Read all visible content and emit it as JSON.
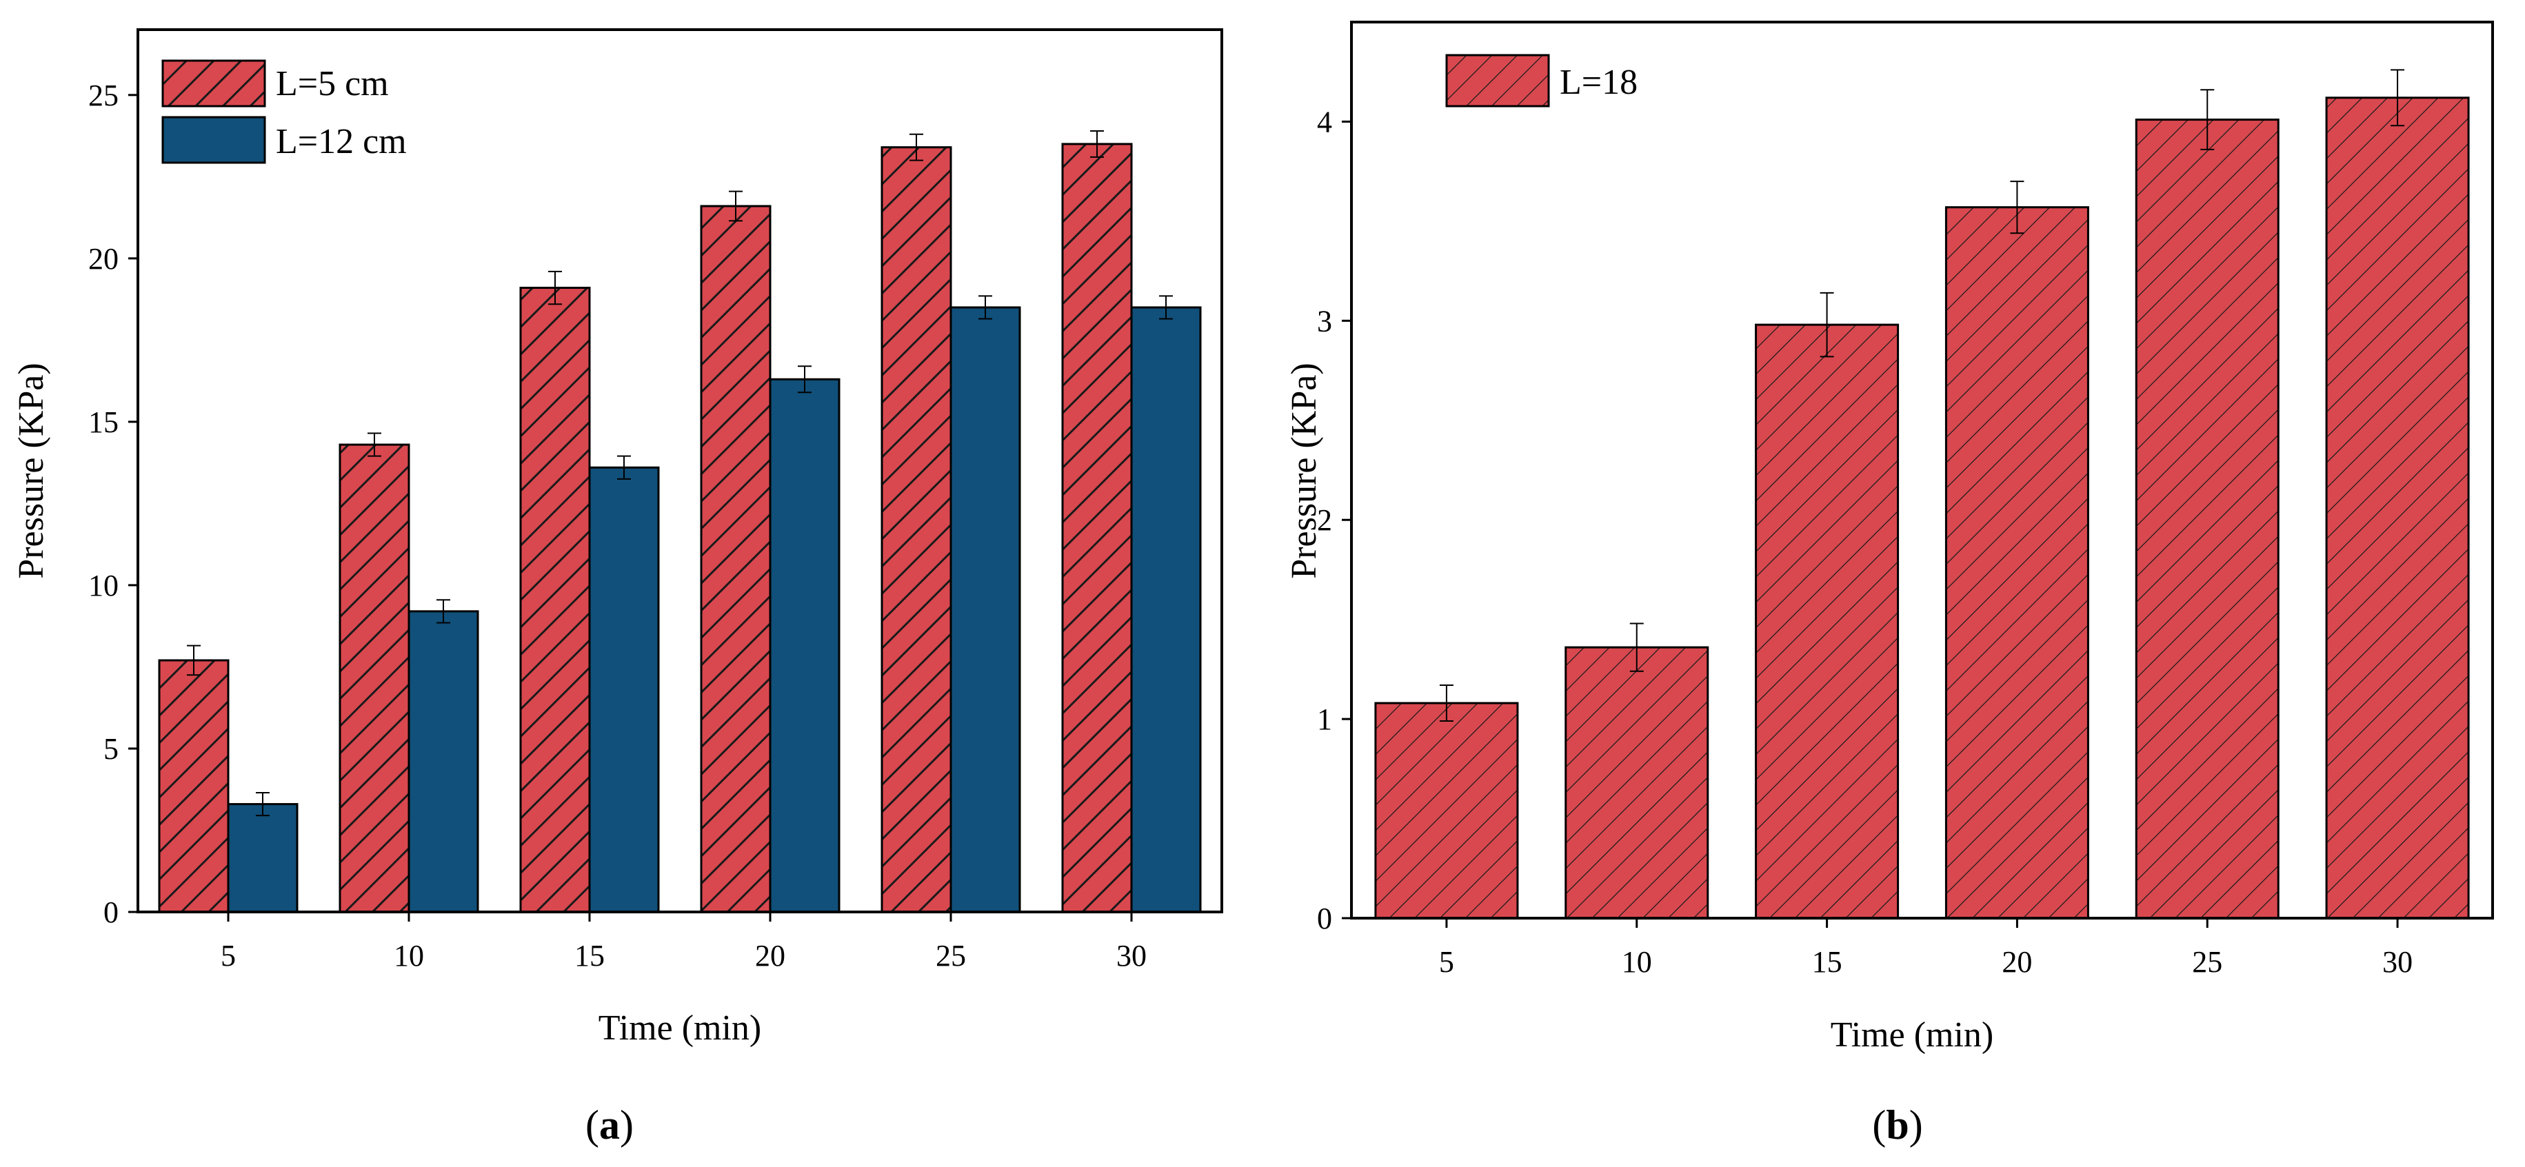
{
  "colors": {
    "series_red": "#d9484f",
    "series_blue": "#11507a",
    "hatch": "#1a1a1a"
  },
  "chart_data": [
    {
      "type": "bar",
      "panel_label_open": "(",
      "panel_label_letter": "a",
      "panel_label_close": ")",
      "title": "",
      "xlabel": "Time (min)",
      "ylabel": "Pressure (KPa)",
      "categories": [
        "5",
        "10",
        "15",
        "20",
        "25",
        "30"
      ],
      "ylim": [
        0,
        27
      ],
      "yticks": [
        "0",
        "5",
        "10",
        "15",
        "20",
        "25"
      ],
      "ytick_values": [
        0,
        5,
        10,
        15,
        20,
        25
      ],
      "legend_position": "top-left",
      "series": [
        {
          "name": "L=5 cm",
          "style": "hatched",
          "color": "#d9484f",
          "values": [
            7.7,
            14.3,
            19.1,
            21.6,
            23.4,
            23.5
          ],
          "errors": [
            0.45,
            0.35,
            0.5,
            0.45,
            0.4,
            0.4
          ]
        },
        {
          "name": "L=12 cm",
          "style": "solid",
          "color": "#11507a",
          "values": [
            3.3,
            9.2,
            13.6,
            16.3,
            18.5,
            18.5
          ],
          "errors": [
            0.35,
            0.35,
            0.35,
            0.4,
            0.35,
            0.35
          ]
        }
      ]
    },
    {
      "type": "bar",
      "panel_label_open": "(",
      "panel_label_letter": "b",
      "panel_label_close": ")",
      "title": "",
      "xlabel": "Time (min)",
      "ylabel": "Pressure (KPa)",
      "categories": [
        "5",
        "10",
        "15",
        "20",
        "25",
        "30"
      ],
      "ylim": [
        0,
        4.5
      ],
      "yticks": [
        "0",
        "1",
        "2",
        "3",
        "4"
      ],
      "ytick_values": [
        0,
        1,
        2,
        3,
        4
      ],
      "legend_position": "top-left",
      "series": [
        {
          "name": "L=18",
          "style": "hatched-thin",
          "color": "#d9484f",
          "values": [
            1.08,
            1.36,
            2.98,
            3.57,
            4.01,
            4.12
          ],
          "errors": [
            0.09,
            0.12,
            0.16,
            0.13,
            0.15,
            0.14
          ]
        }
      ]
    }
  ]
}
